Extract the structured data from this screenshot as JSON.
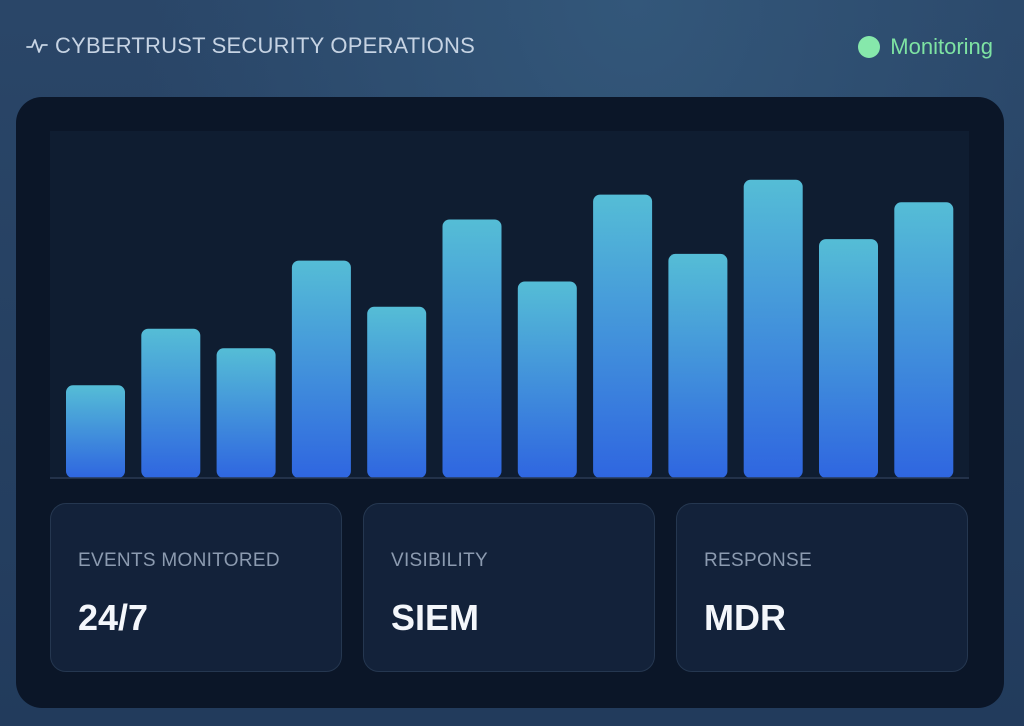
{
  "header": {
    "title": "CYBERTRUST SECURITY OPERATIONS",
    "icon": "pulse-icon",
    "status": {
      "label": "Monitoring",
      "color": "#7ee3a3",
      "dot_color": "#86e8ab"
    }
  },
  "chart_data": {
    "type": "bar",
    "categories": [
      "",
      "",
      "",
      "",
      "",
      "",
      "",
      "",
      "",
      "",
      "",
      ""
    ],
    "values": [
      27.5,
      44.3,
      38.5,
      64.5,
      50.8,
      76.7,
      58.3,
      84.1,
      66.5,
      88.5,
      70.9,
      81.8
    ],
    "ylim": [
      0,
      100
    ],
    "grid": false,
    "colors": {
      "bar_top": "#55bdd6",
      "bar_bottom": "#2f66e0",
      "baseline": "#2a3a52"
    }
  },
  "stats": [
    {
      "label": "EVENTS MONITORED",
      "value": "24/7"
    },
    {
      "label": "VISIBILITY",
      "value": "SIEM"
    },
    {
      "label": "RESPONSE",
      "value": "MDR"
    }
  ]
}
